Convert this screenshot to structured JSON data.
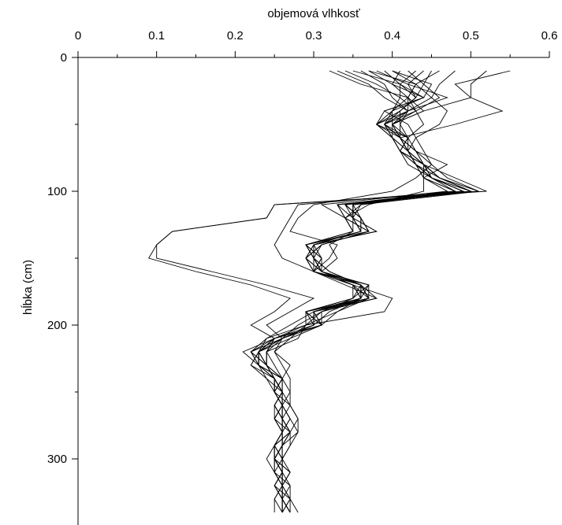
{
  "chart_data": {
    "type": "line",
    "xlabel": "objemová vlhkosť",
    "ylabel": "hĺbka (cm)",
    "xlim": [
      0,
      0.6
    ],
    "ylim": [
      0,
      350
    ],
    "y_inverted": true,
    "x_axis_position": "top",
    "x_ticks": [
      "0",
      "0.1",
      "0.2",
      "0.3",
      "0.4",
      "0.5",
      "0.6"
    ],
    "y_ticks": [
      "0",
      "100",
      "200",
      "300"
    ],
    "grid": false,
    "legend": "none",
    "line_color": "#000000",
    "depths": [
      10,
      20,
      30,
      40,
      50,
      60,
      70,
      80,
      90,
      100,
      110,
      120,
      130,
      140,
      150,
      160,
      170,
      180,
      190,
      200,
      210,
      220,
      230,
      240,
      250,
      260,
      270,
      280,
      290,
      300,
      310,
      320,
      330,
      340
    ],
    "series": [
      {
        "values": [
          0.55,
          0.48,
          0.5,
          0.44,
          0.4,
          0.41,
          0.42,
          0.44,
          0.48,
          0.52,
          0.25,
          0.24,
          0.12,
          0.1,
          0.09,
          0.15,
          0.22,
          0.27,
          0.25,
          0.22,
          0.25,
          0.21,
          0.23,
          0.24,
          0.26,
          0.25,
          0.26,
          0.26,
          0.25,
          0.25,
          0.26,
          0.25,
          0.26,
          0.26
        ]
      },
      {
        "values": [
          0.52,
          0.5,
          0.5,
          0.54,
          0.48,
          0.41,
          0.43,
          0.45,
          0.47,
          0.51,
          0.25,
          0.24,
          0.12,
          0.1,
          0.1,
          0.17,
          0.24,
          0.3,
          0.27,
          0.24,
          0.26,
          0.22,
          0.24,
          0.25,
          0.26,
          0.26,
          0.27,
          0.26,
          0.26,
          0.25,
          0.26,
          0.25,
          0.26,
          0.27
        ]
      },
      {
        "values": [
          0.48,
          0.46,
          0.45,
          0.47,
          0.46,
          0.43,
          0.42,
          0.44,
          0.46,
          0.5,
          0.35,
          0.36,
          0.37,
          0.31,
          0.29,
          0.31,
          0.36,
          0.38,
          0.3,
          0.27,
          0.24,
          0.22,
          0.24,
          0.25,
          0.25,
          0.26,
          0.25,
          0.27,
          0.26,
          0.25,
          0.25,
          0.26,
          0.26,
          0.26
        ]
      },
      {
        "values": [
          0.46,
          0.43,
          0.42,
          0.43,
          0.44,
          0.42,
          0.43,
          0.44,
          0.45,
          0.48,
          0.28,
          0.27,
          0.26,
          0.25,
          0.26,
          0.3,
          0.35,
          0.4,
          0.39,
          0.29,
          0.28,
          0.24,
          0.25,
          0.26,
          0.27,
          0.27,
          0.28,
          0.28,
          0.27,
          0.26,
          0.27,
          0.26,
          0.27,
          0.28
        ]
      },
      {
        "values": [
          0.45,
          0.44,
          0.46,
          0.43,
          0.4,
          0.42,
          0.41,
          0.43,
          0.44,
          0.47,
          0.31,
          0.34,
          0.35,
          0.29,
          0.3,
          0.31,
          0.36,
          0.37,
          0.33,
          0.31,
          0.27,
          0.23,
          0.22,
          0.24,
          0.25,
          0.26,
          0.25,
          0.26,
          0.25,
          0.24,
          0.25,
          0.26,
          0.25,
          0.25
        ]
      },
      {
        "values": [
          0.44,
          0.42,
          0.47,
          0.42,
          0.39,
          0.41,
          0.42,
          0.43,
          0.45,
          0.49,
          0.33,
          0.35,
          0.36,
          0.3,
          0.29,
          0.3,
          0.35,
          0.36,
          0.32,
          0.3,
          0.25,
          0.23,
          0.23,
          0.26,
          0.26,
          0.25,
          0.26,
          0.26,
          0.26,
          0.25,
          0.26,
          0.26,
          0.26,
          0.27
        ]
      },
      {
        "values": [
          0.43,
          0.41,
          0.44,
          0.4,
          0.39,
          0.4,
          0.42,
          0.44,
          0.46,
          0.5,
          0.34,
          0.35,
          0.35,
          0.29,
          0.3,
          0.31,
          0.36,
          0.37,
          0.3,
          0.31,
          0.26,
          0.23,
          0.24,
          0.25,
          0.25,
          0.26,
          0.26,
          0.27,
          0.25,
          0.26,
          0.26,
          0.25,
          0.27,
          0.26
        ]
      },
      {
        "values": [
          0.42,
          0.44,
          0.43,
          0.41,
          0.38,
          0.4,
          0.41,
          0.43,
          0.45,
          0.49,
          0.34,
          0.36,
          0.36,
          0.3,
          0.29,
          0.3,
          0.36,
          0.35,
          0.29,
          0.31,
          0.25,
          0.23,
          0.23,
          0.25,
          0.26,
          0.26,
          0.25,
          0.26,
          0.26,
          0.25,
          0.26,
          0.26,
          0.26,
          0.26
        ]
      },
      {
        "values": [
          0.41,
          0.4,
          0.44,
          0.39,
          0.38,
          0.41,
          0.42,
          0.43,
          0.46,
          0.51,
          0.36,
          0.34,
          0.37,
          0.31,
          0.3,
          0.31,
          0.37,
          0.36,
          0.3,
          0.3,
          0.26,
          0.24,
          0.24,
          0.25,
          0.25,
          0.26,
          0.26,
          0.27,
          0.26,
          0.25,
          0.27,
          0.26,
          0.26,
          0.27
        ]
      },
      {
        "values": [
          0.4,
          0.43,
          0.42,
          0.42,
          0.39,
          0.4,
          0.41,
          0.44,
          0.45,
          0.5,
          0.35,
          0.35,
          0.36,
          0.3,
          0.31,
          0.3,
          0.35,
          0.37,
          0.29,
          0.31,
          0.25,
          0.22,
          0.23,
          0.25,
          0.26,
          0.25,
          0.26,
          0.26,
          0.25,
          0.26,
          0.26,
          0.26,
          0.26,
          0.26
        ]
      },
      {
        "values": [
          0.39,
          0.41,
          0.41,
          0.4,
          0.4,
          0.41,
          0.42,
          0.43,
          0.44,
          0.48,
          0.33,
          0.34,
          0.35,
          0.29,
          0.3,
          0.31,
          0.36,
          0.36,
          0.3,
          0.3,
          0.26,
          0.23,
          0.24,
          0.26,
          0.25,
          0.27,
          0.26,
          0.26,
          0.26,
          0.26,
          0.25,
          0.27,
          0.26,
          0.26
        ]
      },
      {
        "values": [
          0.38,
          0.42,
          0.43,
          0.41,
          0.39,
          0.42,
          0.41,
          0.42,
          0.45,
          0.49,
          0.34,
          0.36,
          0.37,
          0.31,
          0.29,
          0.3,
          0.37,
          0.35,
          0.31,
          0.29,
          0.24,
          0.23,
          0.22,
          0.25,
          0.26,
          0.26,
          0.27,
          0.26,
          0.25,
          0.25,
          0.26,
          0.25,
          0.26,
          0.26
        ]
      },
      {
        "values": [
          0.37,
          0.4,
          0.42,
          0.44,
          0.4,
          0.41,
          0.43,
          0.44,
          0.46,
          0.5,
          0.35,
          0.35,
          0.38,
          0.3,
          0.3,
          0.32,
          0.36,
          0.37,
          0.3,
          0.31,
          0.25,
          0.24,
          0.24,
          0.26,
          0.25,
          0.26,
          0.26,
          0.26,
          0.26,
          0.26,
          0.26,
          0.26,
          0.27,
          0.26
        ]
      },
      {
        "values": [
          0.36,
          0.39,
          0.4,
          0.42,
          0.38,
          0.4,
          0.42,
          0.43,
          0.45,
          0.49,
          0.34,
          0.36,
          0.36,
          0.29,
          0.31,
          0.3,
          0.35,
          0.36,
          0.29,
          0.3,
          0.26,
          0.22,
          0.23,
          0.25,
          0.26,
          0.25,
          0.26,
          0.27,
          0.25,
          0.25,
          0.26,
          0.26,
          0.26,
          0.26
        ]
      },
      {
        "values": [
          0.35,
          0.41,
          0.43,
          0.41,
          0.41,
          0.42,
          0.41,
          0.44,
          0.46,
          0.51,
          0.33,
          0.34,
          0.37,
          0.31,
          0.29,
          0.31,
          0.37,
          0.37,
          0.31,
          0.31,
          0.25,
          0.23,
          0.24,
          0.25,
          0.26,
          0.26,
          0.26,
          0.26,
          0.26,
          0.26,
          0.26,
          0.25,
          0.26,
          0.27
        ]
      },
      {
        "values": [
          0.34,
          0.38,
          0.41,
          0.43,
          0.39,
          0.41,
          0.42,
          0.43,
          0.45,
          0.5,
          0.35,
          0.35,
          0.36,
          0.3,
          0.3,
          0.3,
          0.36,
          0.36,
          0.3,
          0.3,
          0.26,
          0.23,
          0.23,
          0.26,
          0.25,
          0.26,
          0.26,
          0.27,
          0.26,
          0.25,
          0.27,
          0.26,
          0.26,
          0.26
        ]
      },
      {
        "values": [
          0.33,
          0.37,
          0.39,
          0.42,
          0.4,
          0.4,
          0.41,
          0.44,
          0.44,
          0.48,
          0.34,
          0.36,
          0.37,
          0.29,
          0.31,
          0.31,
          0.35,
          0.35,
          0.29,
          0.29,
          0.25,
          0.24,
          0.24,
          0.25,
          0.26,
          0.25,
          0.25,
          0.26,
          0.25,
          0.26,
          0.26,
          0.26,
          0.25,
          0.26
        ]
      },
      {
        "values": [
          0.32,
          0.36,
          0.42,
          0.4,
          0.38,
          0.42,
          0.42,
          0.43,
          0.45,
          0.49,
          0.36,
          0.35,
          0.38,
          0.3,
          0.3,
          0.32,
          0.36,
          0.37,
          0.3,
          0.3,
          0.26,
          0.23,
          0.23,
          0.26,
          0.26,
          0.26,
          0.26,
          0.26,
          0.26,
          0.25,
          0.26,
          0.26,
          0.26,
          0.26
        ]
      },
      {
        "values": [
          0.37,
          0.43,
          0.45,
          0.42,
          0.41,
          0.41,
          0.43,
          0.47,
          0.44,
          0.44,
          0.37,
          0.34,
          0.35,
          0.32,
          0.33,
          0.31,
          0.35,
          0.36,
          0.33,
          0.29,
          0.27,
          0.25,
          0.26,
          0.27,
          0.27,
          0.26,
          0.27,
          0.28,
          0.26,
          0.25,
          0.25,
          0.26,
          0.26,
          0.27
        ]
      },
      {
        "values": [
          0.4,
          0.45,
          0.44,
          0.39,
          0.42,
          0.43,
          0.44,
          0.45,
          0.43,
          0.4,
          0.3,
          0.28,
          0.27,
          0.33,
          0.32,
          0.3,
          0.34,
          0.38,
          0.31,
          0.28,
          0.26,
          0.25,
          0.27,
          0.26,
          0.26,
          0.27,
          0.28,
          0.27,
          0.27,
          0.26,
          0.26,
          0.27,
          0.27,
          0.27
        ]
      }
    ]
  }
}
